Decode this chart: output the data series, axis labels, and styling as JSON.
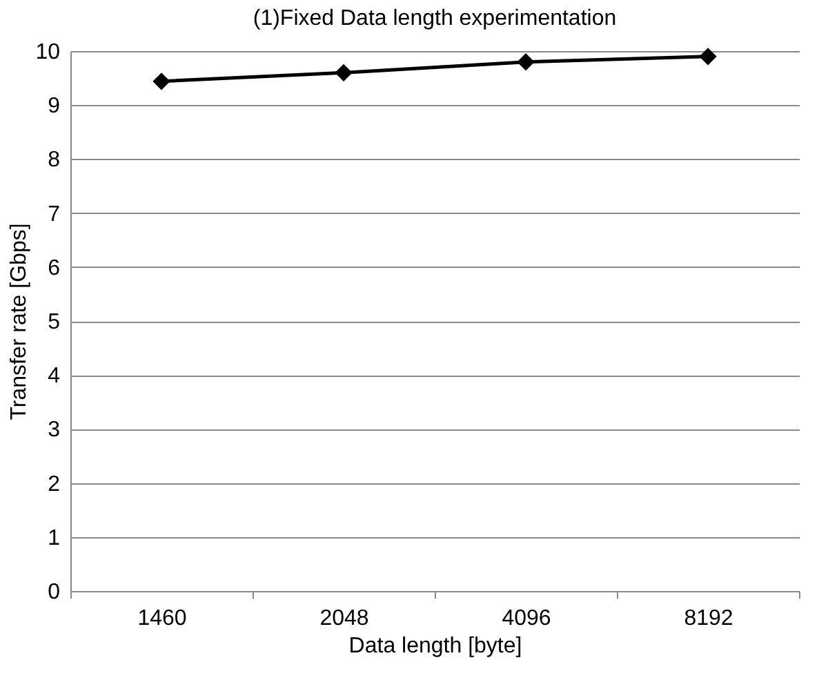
{
  "chart_data": {
    "type": "line",
    "title": "(1)Fixed Data length experimentation",
    "xlabel": "Data length [byte]",
    "ylabel": "Transfer rate [Gbps]",
    "categories": [
      "1460",
      "2048",
      "4096",
      "8192"
    ],
    "series": [
      {
        "color": "#000000",
        "values": [
          9.44,
          9.6,
          9.8,
          9.9
        ]
      }
    ],
    "ylim": [
      0,
      10
    ],
    "yticks": [
      0,
      1,
      2,
      3,
      4,
      5,
      6,
      7,
      8,
      9,
      10
    ],
    "grid": "y",
    "marker": "diamond",
    "line_style": "solid"
  }
}
